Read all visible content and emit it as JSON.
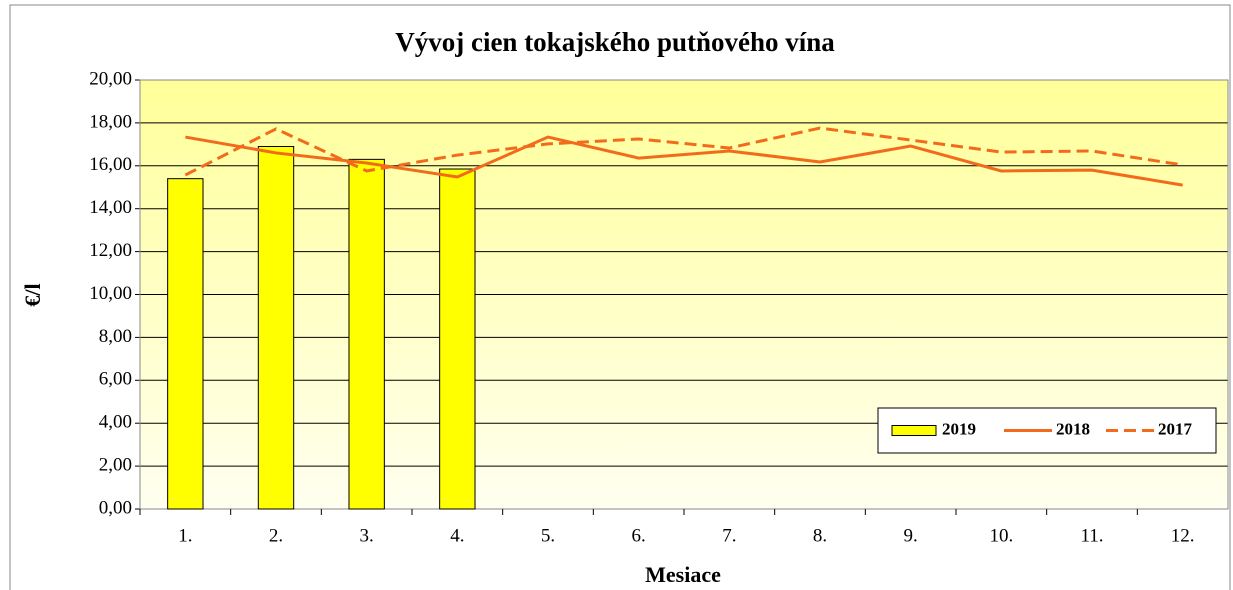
{
  "chart_data": {
    "type": "bar",
    "title": "Vývoj cien tokajského putňového vína",
    "x_label": "Mesiace",
    "y_label": "€/l",
    "categories": [
      "1.",
      "2.",
      "3.",
      "4.",
      "5.",
      "6.",
      "7.",
      "8.",
      "9.",
      "10.",
      "11.",
      "12."
    ],
    "series": [
      {
        "name": "2019",
        "kind": "bar",
        "color": "#ffff00",
        "values": [
          15.4,
          16.9,
          16.3,
          15.85,
          null,
          null,
          null,
          null,
          null,
          null,
          null,
          null
        ]
      },
      {
        "name": "2018",
        "kind": "line",
        "color": "#f26b1d",
        "values": [
          17.34,
          16.6,
          16.13,
          15.48,
          17.34,
          16.36,
          16.69,
          16.18,
          16.92,
          15.76,
          15.8,
          15.1
        ]
      },
      {
        "name": "2017",
        "kind": "line",
        "linestyle": "dashed",
        "color": "#f26b1d",
        "values": [
          15.57,
          17.72,
          15.76,
          16.5,
          17.02,
          17.25,
          16.83,
          17.76,
          17.2,
          16.64,
          16.69,
          16.04
        ]
      }
    ],
    "ylim": [
      0,
      20
    ],
    "yticks": [
      {
        "value": 0,
        "label": "0,00"
      },
      {
        "value": 2,
        "label": "2,00"
      },
      {
        "value": 4,
        "label": "4,00"
      },
      {
        "value": 6,
        "label": "6,00"
      },
      {
        "value": 8,
        "label": "8,00"
      },
      {
        "value": 10,
        "label": "10,00"
      },
      {
        "value": 12,
        "label": "12,00"
      },
      {
        "value": 14,
        "label": "14,00"
      },
      {
        "value": 16,
        "label": "16,00"
      },
      {
        "value": 18,
        "label": "18,00"
      },
      {
        "value": 20,
        "label": "20,00"
      }
    ],
    "grid": true,
    "legend": "lower right"
  }
}
